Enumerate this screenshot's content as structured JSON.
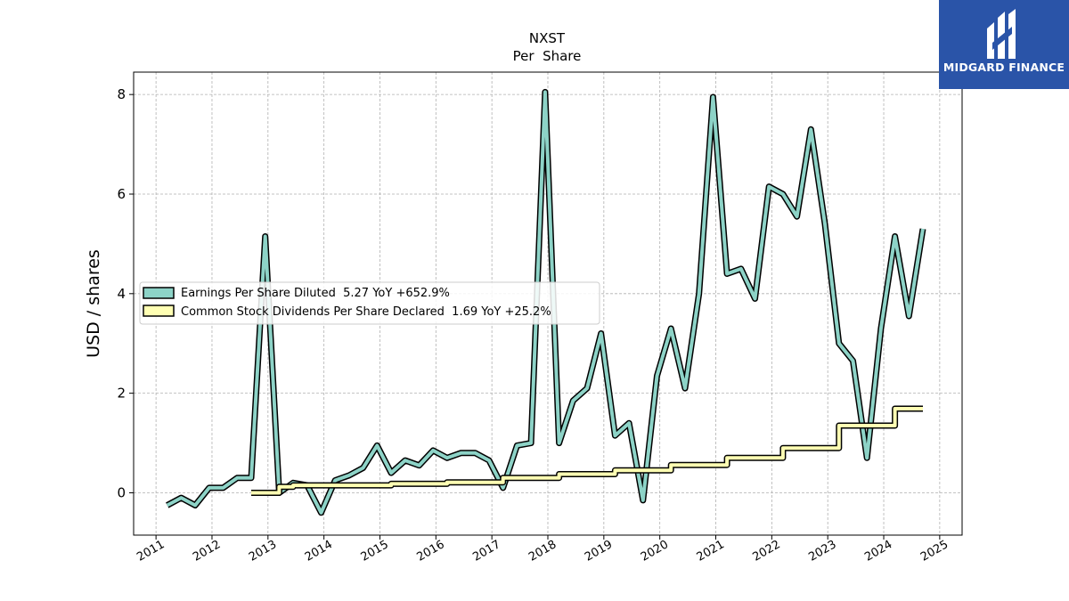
{
  "brand": {
    "name": "MIDGARD FINANCE",
    "icon": "midgard-logo-icon",
    "color": "#2a54a8"
  },
  "chart_data": {
    "type": "line",
    "title": "NXST",
    "subtitle": "Per  Share",
    "ylabel": "USD / shares",
    "xlabel": "",
    "xlim": [
      2010.6,
      2025.4
    ],
    "ylim": [
      -0.85,
      8.45
    ],
    "yticks": [
      0,
      2,
      4,
      6,
      8
    ],
    "xticks": [
      "2011",
      "2012",
      "2013",
      "2014",
      "2015",
      "2016",
      "2017",
      "2018",
      "2019",
      "2020",
      "2021",
      "2022",
      "2023",
      "2024",
      "2025"
    ],
    "grid": true,
    "legend_position": "center-left",
    "series": [
      {
        "name": "Earnings Per Share Diluted  5.27 YoY +652.9%",
        "color": "#8dd3c7",
        "x": [
          2011.2,
          2011.45,
          2011.7,
          2011.95,
          2012.2,
          2012.45,
          2012.7,
          2012.95,
          2013.2,
          2013.45,
          2013.7,
          2013.95,
          2014.2,
          2014.45,
          2014.7,
          2014.95,
          2015.2,
          2015.45,
          2015.7,
          2015.95,
          2016.2,
          2016.45,
          2016.7,
          2016.95,
          2017.2,
          2017.45,
          2017.7,
          2017.95,
          2018.2,
          2018.45,
          2018.7,
          2018.95,
          2019.2,
          2019.45,
          2019.7,
          2019.95,
          2020.2,
          2020.45,
          2020.7,
          2020.95,
          2021.2,
          2021.45,
          2021.7,
          2021.95,
          2022.2,
          2022.45,
          2022.7,
          2022.95,
          2023.2,
          2023.45,
          2023.7,
          2023.95,
          2024.2,
          2024.45,
          2024.7
        ],
        "values": [
          -0.25,
          -0.1,
          -0.25,
          0.1,
          0.1,
          0.3,
          0.3,
          5.15,
          0.0,
          0.2,
          0.15,
          -0.4,
          0.25,
          0.35,
          0.5,
          0.95,
          0.4,
          0.65,
          0.55,
          0.85,
          0.7,
          0.8,
          0.8,
          0.65,
          0.1,
          0.95,
          1.0,
          8.05,
          1.0,
          1.85,
          2.1,
          3.2,
          1.15,
          1.4,
          -0.15,
          2.35,
          3.3,
          2.1,
          4.0,
          7.95,
          4.4,
          4.5,
          3.9,
          6.15,
          6.0,
          5.55,
          7.3,
          5.4,
          3.0,
          2.65,
          0.7,
          3.3,
          5.15,
          3.55,
          5.3
        ]
      },
      {
        "name": "Common Stock Dividends Per Share Declared  1.69 YoY +25.2%",
        "color": "#ffffb3",
        "step": true,
        "x": [
          2012.7,
          2012.95,
          2013.2,
          2013.45,
          2013.7,
          2013.95,
          2014.2,
          2014.45,
          2014.7,
          2014.95,
          2015.2,
          2015.45,
          2015.7,
          2015.95,
          2016.2,
          2016.45,
          2016.7,
          2016.95,
          2017.2,
          2017.45,
          2017.7,
          2017.95,
          2018.2,
          2018.45,
          2018.7,
          2018.95,
          2019.2,
          2019.45,
          2019.7,
          2019.95,
          2020.2,
          2020.45,
          2020.7,
          2020.95,
          2021.2,
          2021.45,
          2021.7,
          2021.95,
          2022.2,
          2022.45,
          2022.7,
          2022.95,
          2023.2,
          2023.45,
          2023.7,
          2023.95,
          2024.2,
          2024.45,
          2024.7
        ],
        "values": [
          0.0,
          0.0,
          0.12,
          0.15,
          0.15,
          0.15,
          0.15,
          0.15,
          0.15,
          0.15,
          0.18,
          0.18,
          0.18,
          0.18,
          0.21,
          0.21,
          0.21,
          0.21,
          0.3,
          0.3,
          0.3,
          0.3,
          0.375,
          0.375,
          0.375,
          0.375,
          0.45,
          0.45,
          0.45,
          0.45,
          0.56,
          0.56,
          0.56,
          0.56,
          0.7,
          0.7,
          0.7,
          0.7,
          0.9,
          0.9,
          0.9,
          0.9,
          1.35,
          1.35,
          1.35,
          1.35,
          1.69,
          1.69,
          1.69
        ]
      }
    ]
  }
}
